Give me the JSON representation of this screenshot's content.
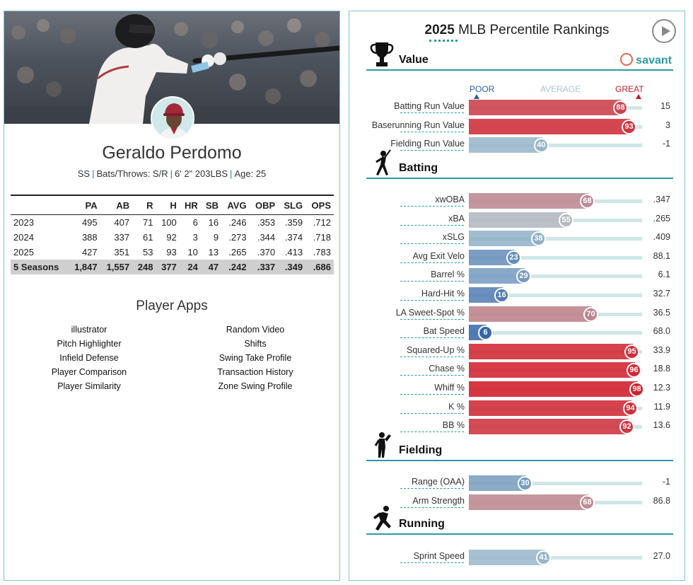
{
  "player": {
    "name": "Geraldo Perdomo",
    "position": "SS",
    "bats_throws": "Bats/Throws: S/R",
    "height_weight": "6' 2\" 203LBS",
    "age": "Age: 25",
    "separator": "|"
  },
  "stats": {
    "headers": [
      "",
      "PA",
      "AB",
      "R",
      "H",
      "HR",
      "SB",
      "AVG",
      "OBP",
      "SLG",
      "OPS"
    ],
    "rows": [
      [
        "2023",
        "495",
        "407",
        "71",
        "100",
        "6",
        "16",
        ".246",
        ".353",
        ".359",
        ".712"
      ],
      [
        "2024",
        "388",
        "337",
        "61",
        "92",
        "3",
        "9",
        ".273",
        ".344",
        ".374",
        ".718"
      ],
      [
        "2025",
        "427",
        "351",
        "53",
        "93",
        "10",
        "13",
        ".265",
        ".370",
        ".413",
        ".783"
      ],
      [
        "5 Seasons",
        "1,847",
        "1,557",
        "248",
        "377",
        "24",
        "47",
        ".242",
        ".337",
        ".349",
        ".686"
      ]
    ]
  },
  "apps": {
    "title": "Player Apps",
    "left": [
      "illustrator",
      "Pitch Highlighter",
      "Infield Defense",
      "Player Comparison",
      "Player Similarity"
    ],
    "right": [
      "Random Video",
      "Shifts",
      "Swing Take Profile",
      "Transaction History",
      "Zone Swing Profile"
    ]
  },
  "rankings": {
    "year": "2025",
    "title_rest": "MLB Percentile Rankings",
    "brand": "savant",
    "scale": {
      "poor": "POOR",
      "average": "AVERAGE",
      "great": "GREAT"
    },
    "sections": [
      {
        "label": "Value",
        "icon": "trophy-icon",
        "rows": [
          {
            "metric": "Batting Run Value",
            "pct": 88,
            "value": "15"
          },
          {
            "metric": "Baserunning Run Value",
            "pct": 93,
            "value": "3"
          },
          {
            "metric": "Fielding Run Value",
            "pct": 40,
            "value": "-1"
          }
        ]
      },
      {
        "label": "Batting",
        "icon": "batter-icon",
        "rows": [
          {
            "metric": "xwOBA",
            "pct": 68,
            "value": ".347"
          },
          {
            "metric": "xBA",
            "pct": 55,
            "value": ".265"
          },
          {
            "metric": "xSLG",
            "pct": 38,
            "value": ".409"
          },
          {
            "metric": "Avg Exit Velo",
            "pct": 23,
            "value": "88.1"
          },
          {
            "metric": "Barrel %",
            "pct": 29,
            "value": "6.1"
          },
          {
            "metric": "Hard-Hit %",
            "pct": 16,
            "value": "32.7"
          },
          {
            "metric": "LA Sweet-Spot %",
            "pct": 70,
            "value": "36.5"
          },
          {
            "metric": "Bat Speed",
            "pct": 6,
            "value": "68.0"
          },
          {
            "metric": "Squared-Up %",
            "pct": 95,
            "value": "33.9"
          },
          {
            "metric": "Chase %",
            "pct": 96,
            "value": "18.8"
          },
          {
            "metric": "Whiff %",
            "pct": 98,
            "value": "12.3"
          },
          {
            "metric": "K %",
            "pct": 94,
            "value": "11.9"
          },
          {
            "metric": "BB %",
            "pct": 92,
            "value": "13.6"
          }
        ]
      },
      {
        "label": "Fielding",
        "icon": "fielder-icon",
        "rows": [
          {
            "metric": "Range (OAA)",
            "pct": 30,
            "value": "-1"
          },
          {
            "metric": "Arm Strength",
            "pct": 68,
            "value": "86.8"
          }
        ]
      },
      {
        "label": "Running",
        "icon": "runner-icon",
        "rows": [
          {
            "metric": "Sprint Speed",
            "pct": 41,
            "value": "27.0"
          }
        ]
      }
    ]
  }
}
